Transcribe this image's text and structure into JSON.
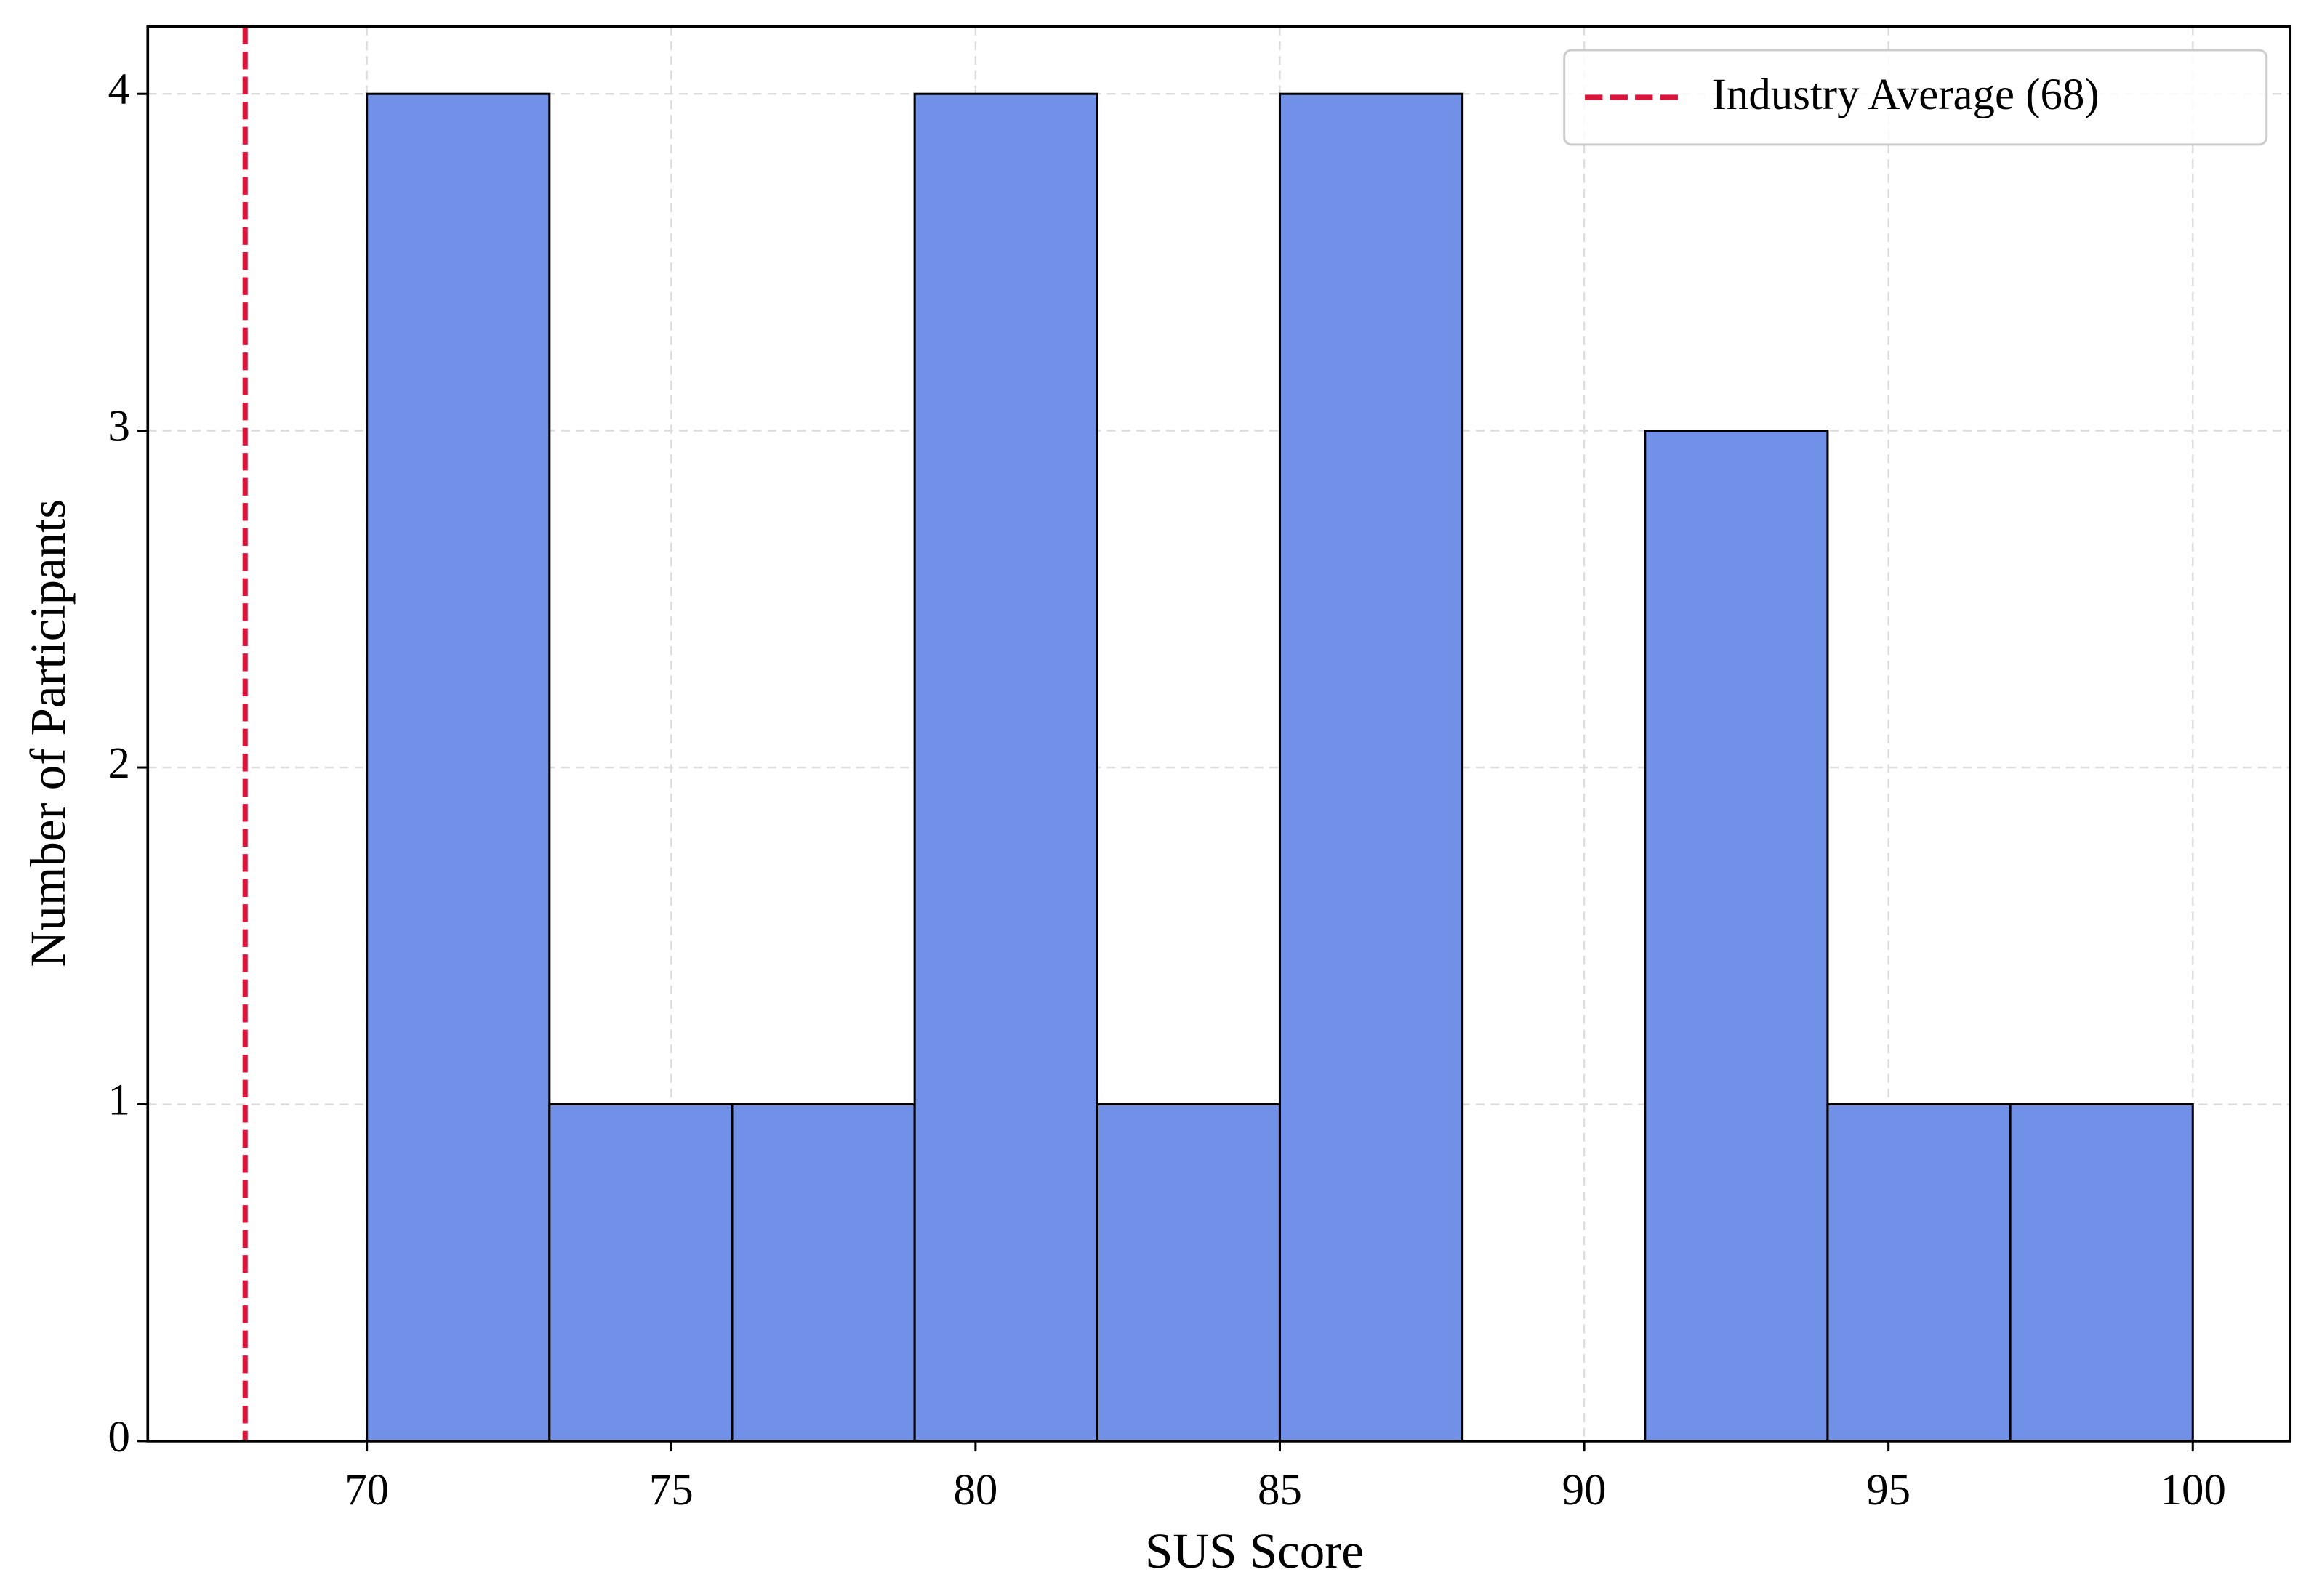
{
  "chart_data": {
    "type": "histogram",
    "x_label": "SUS Score",
    "y_label": "Number of Participants",
    "bins": [
      70,
      73,
      76,
      79,
      82,
      85,
      88,
      91,
      94,
      97,
      100
    ],
    "values": [
      4,
      1,
      1,
      4,
      1,
      4,
      0,
      3,
      1,
      1
    ],
    "color": "#7190e8",
    "edgecolor": "#000000",
    "xlim": [
      66.4,
      101.6
    ],
    "xticks": [
      70,
      75,
      80,
      85,
      90,
      95,
      100
    ],
    "ylim": [
      0,
      4.2
    ],
    "yticks": [
      0,
      1,
      2,
      3,
      4
    ],
    "grid": true,
    "reference_line": {
      "x": 68,
      "label": "Industry Average (68)",
      "color": "#dc143c"
    },
    "legend": "upper right"
  }
}
